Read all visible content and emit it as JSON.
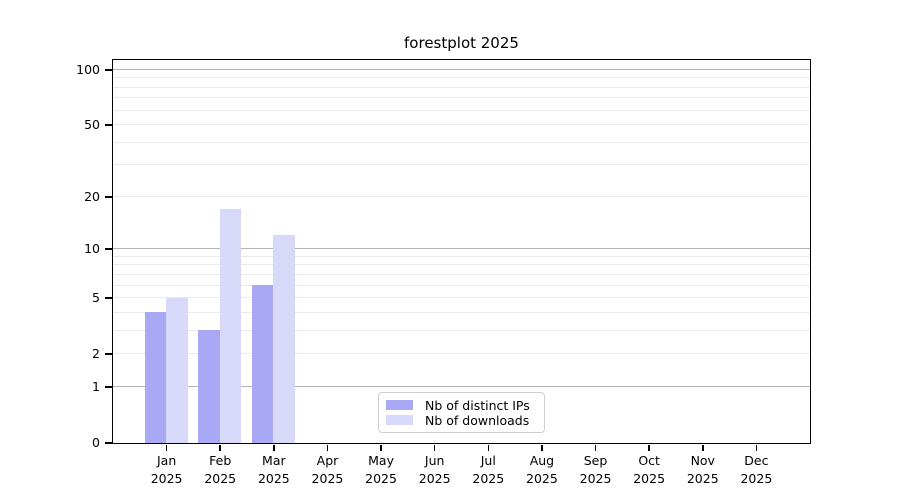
{
  "title": "forestplot 2025",
  "chart_data": {
    "type": "bar",
    "title": "forestplot 2025",
    "categories": [
      {
        "month": "Jan",
        "year": "2025"
      },
      {
        "month": "Feb",
        "year": "2025"
      },
      {
        "month": "Mar",
        "year": "2025"
      },
      {
        "month": "Apr",
        "year": "2025"
      },
      {
        "month": "May",
        "year": "2025"
      },
      {
        "month": "Jun",
        "year": "2025"
      },
      {
        "month": "Jul",
        "year": "2025"
      },
      {
        "month": "Aug",
        "year": "2025"
      },
      {
        "month": "Sep",
        "year": "2025"
      },
      {
        "month": "Oct",
        "year": "2025"
      },
      {
        "month": "Nov",
        "year": "2025"
      },
      {
        "month": "Dec",
        "year": "2025"
      }
    ],
    "series": [
      {
        "name": "Nb of distinct IPs",
        "color": "#a8a8f5",
        "values": [
          4,
          3,
          6,
          0,
          0,
          0,
          0,
          0,
          0,
          0,
          0,
          0
        ]
      },
      {
        "name": "Nb of downloads",
        "color": "#d8d8f8",
        "values": [
          5,
          17,
          12,
          0,
          0,
          0,
          0,
          0,
          0,
          0,
          0,
          0
        ]
      }
    ],
    "xlabel": "",
    "ylabel": "",
    "yscale": "log1p",
    "ylim": [
      0,
      113
    ],
    "ytick_values": [
      100,
      50,
      20,
      10,
      5,
      2,
      1,
      0
    ],
    "grid_minor_values": [
      2,
      3,
      4,
      5,
      6,
      7,
      8,
      9,
      20,
      30,
      40,
      50,
      60,
      70,
      80,
      90
    ],
    "grid_major_values": [
      1,
      10,
      100
    ],
    "grid": "on",
    "legend_position": "lower center",
    "colors": {
      "spine": "#000000",
      "grid_major": "#b4b4b4",
      "grid_minor": "#eaeaea",
      "background": "#ffffff"
    }
  }
}
